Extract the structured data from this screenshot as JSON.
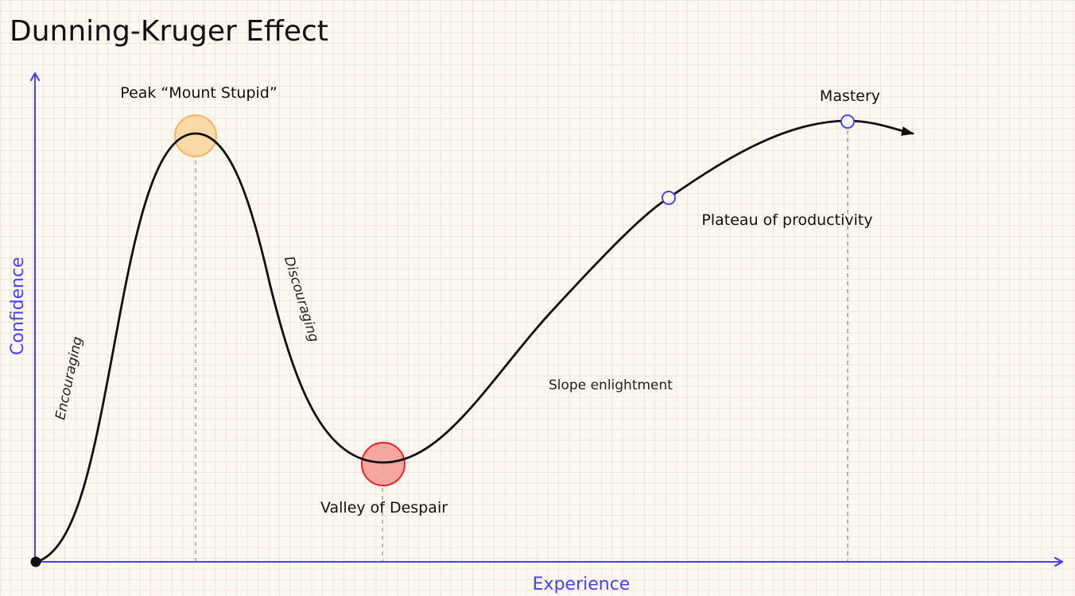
{
  "title": "Dunning-Kruger Effect",
  "axes": {
    "y_label": "Confidence",
    "x_label": "Experience",
    "color": "#4a42f0"
  },
  "stages": {
    "peak": "Peak “Mount Stupid”",
    "valley": "Valley of Despair",
    "slope": "Slope enlightment",
    "plateau": "Plateau of productivity",
    "mastery": "Mastery"
  },
  "segments": {
    "encouraging": "Encouraging",
    "discouraging": "Discouraging"
  },
  "colors": {
    "curve": "#111111",
    "peak_fill": "#fbd6a0",
    "peak_stroke": "#f4b55a",
    "valley_fill": "#f59a92",
    "valley_stroke": "#e52420",
    "marker_stroke": "#4a42f0",
    "grid": "#e9cfc4"
  }
}
